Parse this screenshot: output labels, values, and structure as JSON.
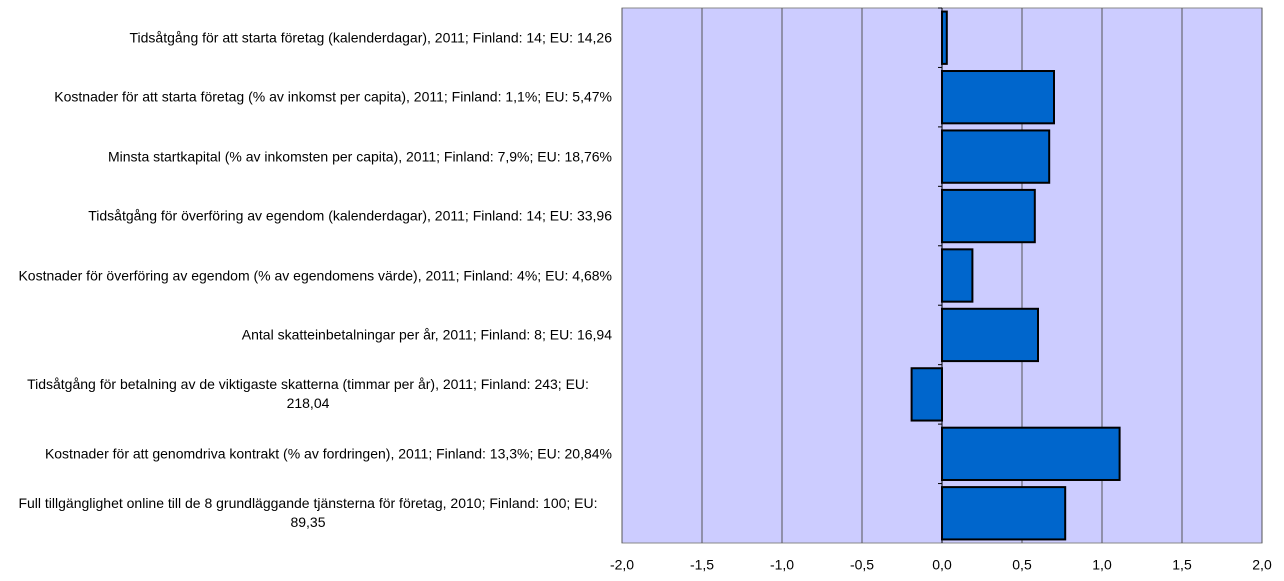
{
  "chart_data": {
    "type": "barh",
    "categories": [
      "Tidsåtgång för att starta företag (kalenderdagar), 2011; Finland: 14; EU: 14,26",
      "Kostnader för att starta företag (% av inkomst per capita), 2011; Finland: 1,1%; EU: 5,47%",
      "Minsta startkapital (% av inkomsten per capita), 2011; Finland: 7,9%; EU: 18,76%",
      "Tidsåtgång för överföring av egendom (kalenderdagar), 2011; Finland: 14; EU: 33,96",
      "Kostnader för överföring av egendom (% av egendomens värde), 2011; Finland: 4%; EU: 4,68%",
      "Antal skatteinbetalningar per år, 2011; Finland: 8; EU: 16,94",
      "Tidsåtgång för betalning av de viktigaste skatterna (timmar per år), 2011; Finland: 243; EU: 218,04",
      "Kostnader för att genomdriva kontrakt (% av fordringen), 2011; Finland: 13,3%; EU: 20,84%",
      "Full tillgänglighet online till de 8 grundläggande tjänsterna för företag, 2010; Finland: 100; EU: 89,35"
    ],
    "values": [
      0.03,
      0.7,
      0.67,
      0.58,
      0.19,
      0.6,
      -0.19,
      1.11,
      0.77
    ],
    "color": "#0066cc",
    "background": "#ccccff",
    "xlim": [
      -2,
      2
    ],
    "xticks": [
      {
        "value": -2,
        "label": "-2,0"
      },
      {
        "value": -1.5,
        "label": "-1,5"
      },
      {
        "value": -1,
        "label": "-1,0"
      },
      {
        "value": -0.5,
        "label": "-0,5"
      },
      {
        "value": 0,
        "label": "0,0"
      },
      {
        "value": 0.5,
        "label": "0,5"
      },
      {
        "value": 1,
        "label": "1,0"
      },
      {
        "value": 1.5,
        "label": "1,5"
      },
      {
        "value": 2,
        "label": "2,0"
      }
    ],
    "grid": true
  }
}
